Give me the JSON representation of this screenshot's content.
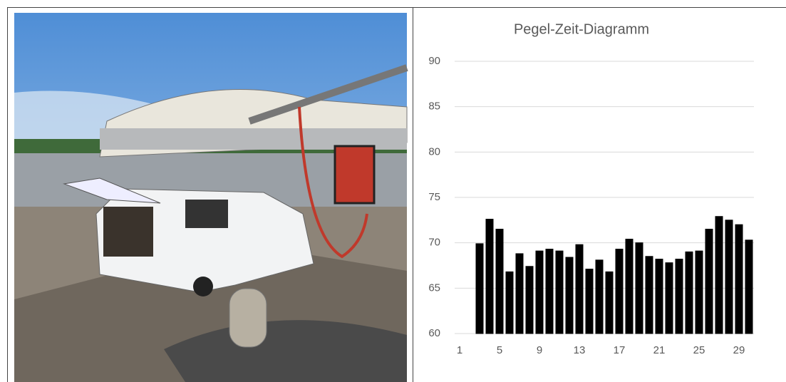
{
  "chart_data": {
    "type": "bar",
    "title": "Pegel-Zeit-Diagramm",
    "categories": [
      "1",
      null,
      null,
      null,
      "5",
      null,
      null,
      null,
      "9",
      null,
      null,
      null,
      "13",
      null,
      null,
      null,
      "17",
      null,
      null,
      null,
      "21",
      null,
      null,
      null,
      "25",
      null,
      null,
      null,
      "29",
      null
    ],
    "values": [
      60,
      60,
      69.9,
      72.6,
      71.5,
      66.8,
      68.8,
      67.4,
      69.1,
      69.3,
      69.1,
      68.4,
      69.8,
      67.1,
      68.1,
      66.8,
      69.3,
      70.4,
      70.0,
      68.5,
      68.2,
      67.8,
      68.2,
      69.0,
      69.1,
      71.5,
      72.9,
      72.5,
      72.0,
      70.3
    ],
    "color": "#000000",
    "ylim": [
      60,
      90
    ],
    "yticks": [
      60,
      65,
      70,
      75,
      80,
      85,
      90
    ],
    "grid": true
  }
}
